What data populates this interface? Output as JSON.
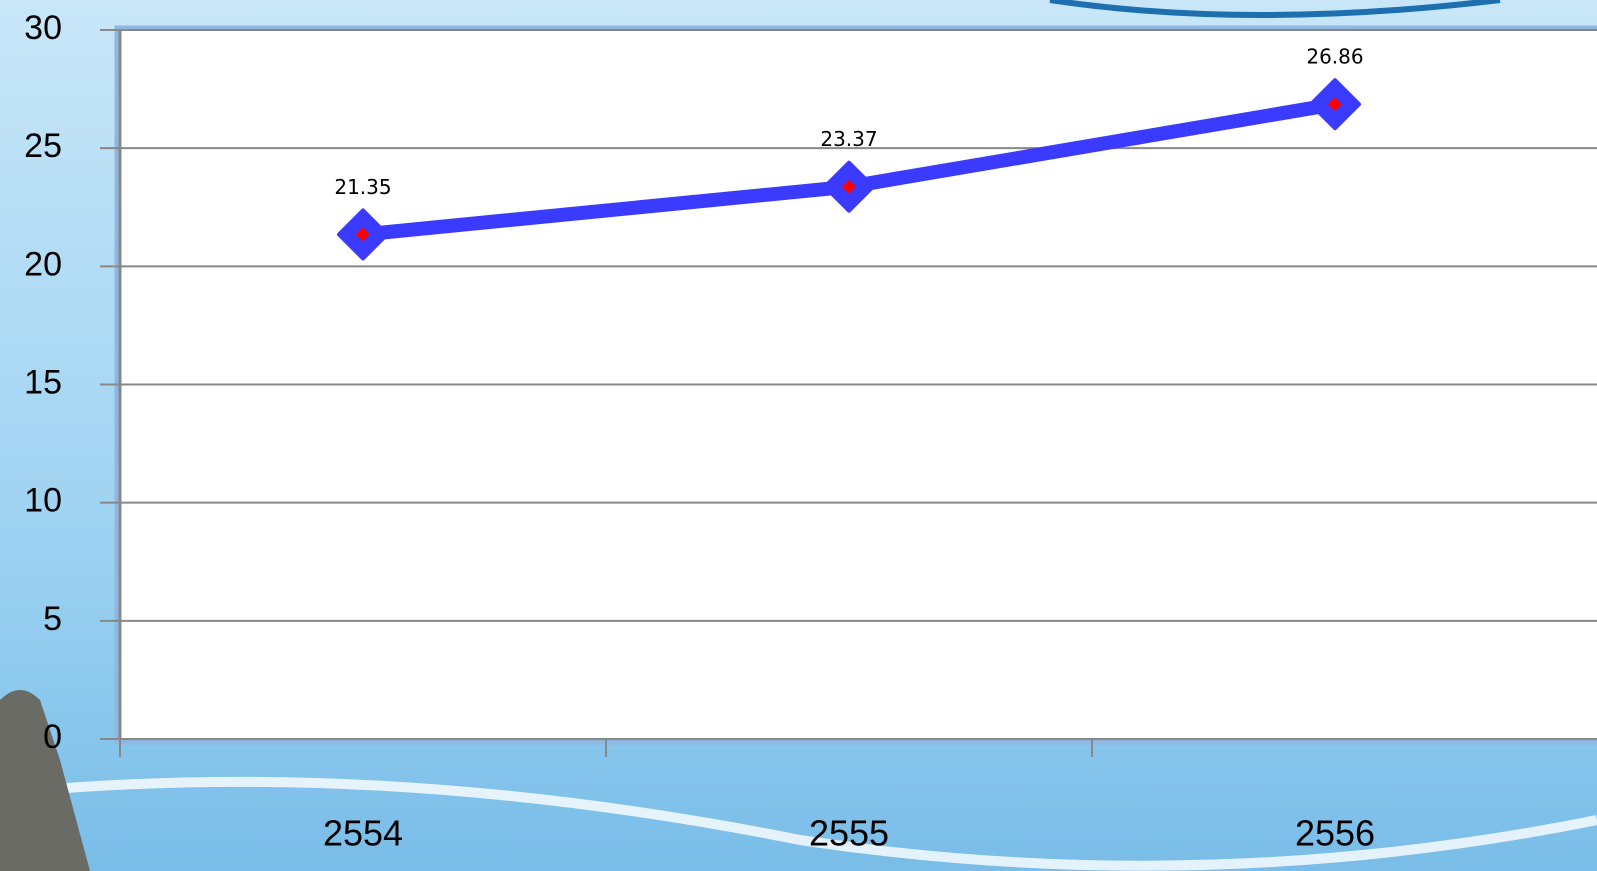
{
  "chart_data": {
    "type": "line",
    "categories": [
      "2554",
      "2555",
      "2556"
    ],
    "values": [
      21.35,
      23.37,
      26.86
    ],
    "color": "#3b3bff",
    "marker_inner_color": "#ff0000",
    "ylim": [
      0,
      30
    ],
    "yticks": [
      0,
      5,
      10,
      15,
      20,
      25,
      30
    ],
    "grid": true
  }
}
